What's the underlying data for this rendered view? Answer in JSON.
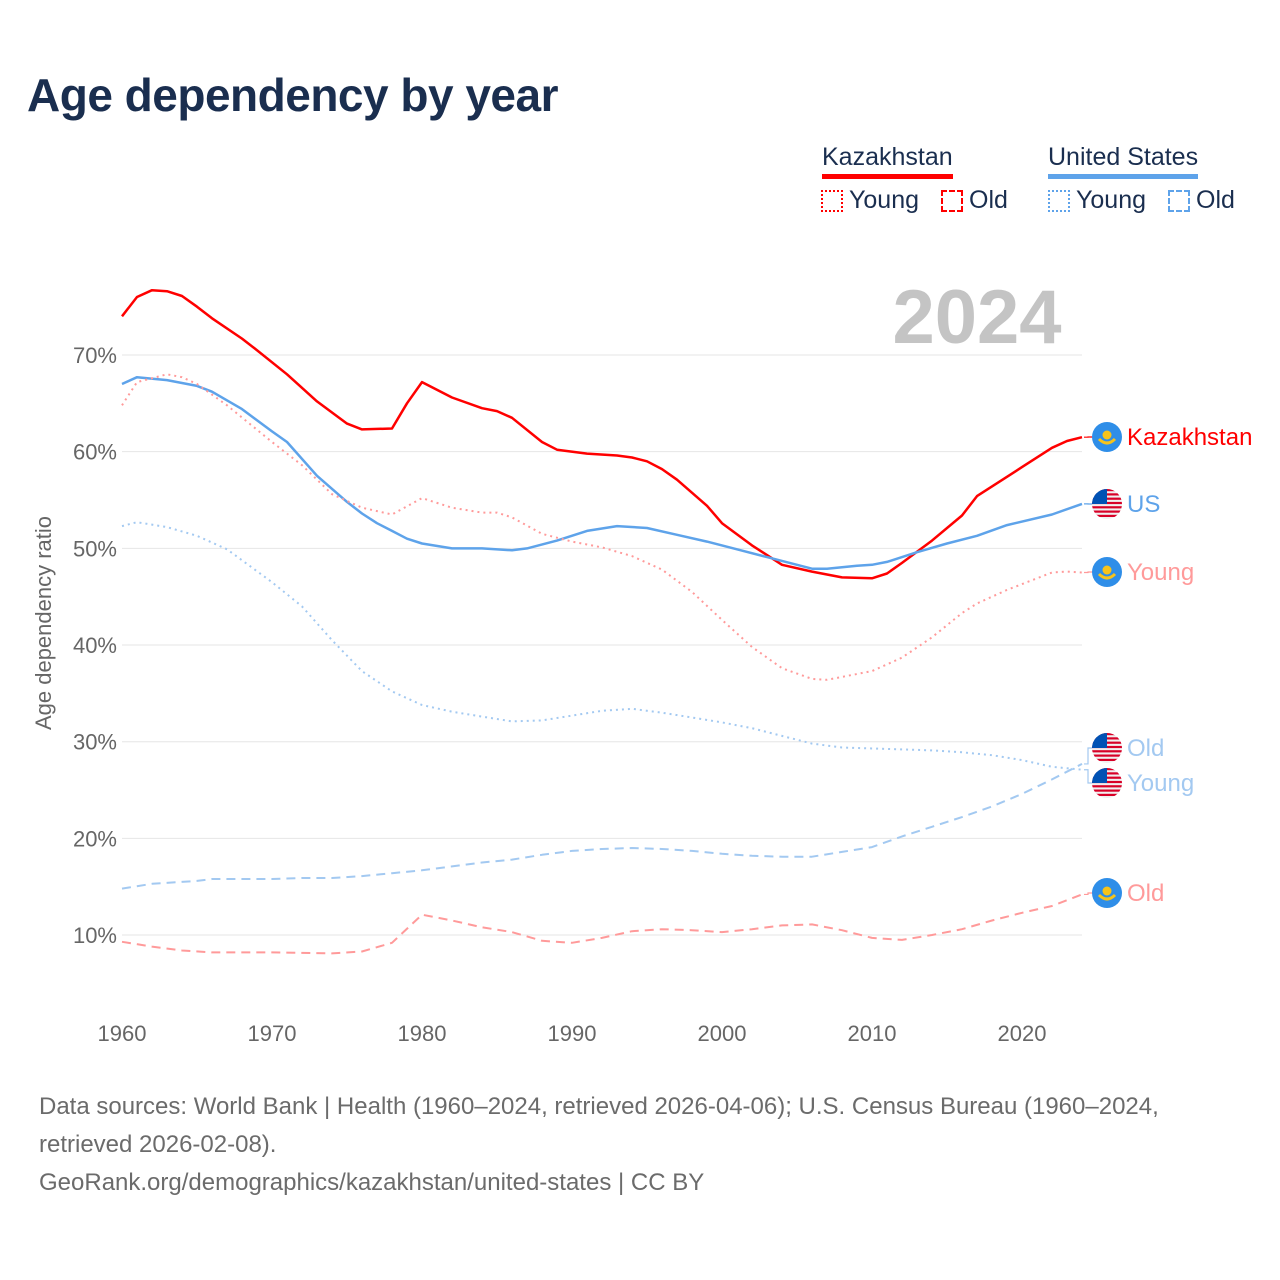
{
  "title": "Age dependency by year",
  "legend": {
    "kazakhstan": {
      "label": "Kazakhstan",
      "color": "#ff0000",
      "young": "Young",
      "old": "Old"
    },
    "us": {
      "label": "United States",
      "color": "#5ea3ea",
      "young": "Young",
      "old": "Old"
    }
  },
  "footer": {
    "sources": "Data sources: World Bank | Health (1960–2024, retrieved 2026-04-06); U.S. Census Bureau (1960–2024, retrieved 2026-02-08).",
    "link": "GeoRank.org/demographics/kazakhstan/united-states | CC BY"
  },
  "chart_data": {
    "type": "line",
    "title": "Age dependency by year",
    "year_watermark": "2024",
    "xlabel": "",
    "ylabel": "Age dependency ratio",
    "xlim": [
      1960,
      2024
    ],
    "ylim": [
      0,
      80
    ],
    "x_ticks": [
      "1960",
      "1970",
      "1980",
      "1990",
      "2000",
      "2010",
      "2020"
    ],
    "y_ticks": [
      "10%",
      "20%",
      "30%",
      "40%",
      "50%",
      "60%",
      "70%"
    ],
    "grid": true,
    "series": [
      {
        "name": "Kazakhstan",
        "end_label": "Kazakhstan",
        "flag": "kazakhstan",
        "color": "#ff0000",
        "style": "solid",
        "points": [
          [
            1960,
            74
          ],
          [
            1961,
            76
          ],
          [
            1962,
            76.7
          ],
          [
            1963,
            76.6
          ],
          [
            1964,
            76.1
          ],
          [
            1965,
            75
          ],
          [
            1966,
            73.8
          ],
          [
            1968,
            71.7
          ],
          [
            1969,
            70.5
          ],
          [
            1971,
            68
          ],
          [
            1973,
            65.2
          ],
          [
            1975,
            62.9
          ],
          [
            1976,
            62.3
          ],
          [
            1978,
            62.4
          ],
          [
            1979,
            65
          ],
          [
            1980,
            67.2
          ],
          [
            1982,
            65.6
          ],
          [
            1984,
            64.5
          ],
          [
            1985,
            64.2
          ],
          [
            1986,
            63.5
          ],
          [
            1988,
            61
          ],
          [
            1989,
            60.2
          ],
          [
            1991,
            59.8
          ],
          [
            1993,
            59.6
          ],
          [
            1994,
            59.4
          ],
          [
            1995,
            59
          ],
          [
            1996,
            58.2
          ],
          [
            1997,
            57.1
          ],
          [
            1999,
            54.4
          ],
          [
            2000,
            52.6
          ],
          [
            2002,
            50.3
          ],
          [
            2003,
            49.3
          ],
          [
            2004,
            48.3
          ],
          [
            2006,
            47.6
          ],
          [
            2007,
            47.3
          ],
          [
            2008,
            47
          ],
          [
            2010,
            46.9
          ],
          [
            2011,
            47.4
          ],
          [
            2012,
            48.5
          ],
          [
            2014,
            50.8
          ],
          [
            2016,
            53.4
          ],
          [
            2017,
            55.4
          ],
          [
            2019,
            57.4
          ],
          [
            2020,
            58.4
          ],
          [
            2022,
            60.4
          ],
          [
            2023,
            61.1
          ],
          [
            2024,
            61.5
          ]
        ]
      },
      {
        "name": "US",
        "end_label": "US",
        "flag": "us",
        "color": "#5ea3ea",
        "style": "solid",
        "points": [
          [
            1960,
            67
          ],
          [
            1961,
            67.7
          ],
          [
            1963,
            67.4
          ],
          [
            1965,
            66.8
          ],
          [
            1966,
            66.2
          ],
          [
            1968,
            64.4
          ],
          [
            1970,
            62.1
          ],
          [
            1971,
            61
          ],
          [
            1973,
            57.5
          ],
          [
            1975,
            54.8
          ],
          [
            1976,
            53.6
          ],
          [
            1977,
            52.6
          ],
          [
            1978,
            51.8
          ],
          [
            1979,
            51
          ],
          [
            1980,
            50.5
          ],
          [
            1982,
            50
          ],
          [
            1984,
            50
          ],
          [
            1986,
            49.8
          ],
          [
            1987,
            50
          ],
          [
            1989,
            50.8
          ],
          [
            1991,
            51.8
          ],
          [
            1993,
            52.3
          ],
          [
            1995,
            52.1
          ],
          [
            1997,
            51.4
          ],
          [
            1999,
            50.7
          ],
          [
            2001,
            49.9
          ],
          [
            2003,
            49.1
          ],
          [
            2005,
            48.3
          ],
          [
            2006,
            47.9
          ],
          [
            2007,
            47.9
          ],
          [
            2009,
            48.2
          ],
          [
            2010,
            48.3
          ],
          [
            2011,
            48.6
          ],
          [
            2013,
            49.6
          ],
          [
            2015,
            50.5
          ],
          [
            2017,
            51.3
          ],
          [
            2019,
            52.4
          ],
          [
            2022,
            53.5
          ],
          [
            2024,
            54.6
          ]
        ]
      },
      {
        "name": "Kazakhstan Young",
        "end_label": "Young",
        "flag": "kazakhstan",
        "color": "#ff9a9a",
        "style": "dotted",
        "points": [
          [
            1960,
            64.8
          ],
          [
            1961,
            67.2
          ],
          [
            1963,
            68
          ],
          [
            1964,
            67.7
          ],
          [
            1965,
            67
          ],
          [
            1967,
            64.8
          ],
          [
            1970,
            61
          ],
          [
            1972,
            58.6
          ],
          [
            1974,
            55.6
          ],
          [
            1976,
            54.2
          ],
          [
            1978,
            53.5
          ],
          [
            1980,
            55.2
          ],
          [
            1982,
            54.2
          ],
          [
            1984,
            53.7
          ],
          [
            1985,
            53.7
          ],
          [
            1986,
            53.2
          ],
          [
            1988,
            51.5
          ],
          [
            1990,
            50.7
          ],
          [
            1992,
            50.1
          ],
          [
            1994,
            49.2
          ],
          [
            1996,
            47.8
          ],
          [
            1998,
            45.5
          ],
          [
            2000,
            42.6
          ],
          [
            2002,
            39.8
          ],
          [
            2004,
            37.6
          ],
          [
            2006,
            36.5
          ],
          [
            2007,
            36.4
          ],
          [
            2008,
            36.7
          ],
          [
            2010,
            37.3
          ],
          [
            2012,
            38.7
          ],
          [
            2014,
            40.8
          ],
          [
            2016,
            43.3
          ],
          [
            2017,
            44.3
          ],
          [
            2019,
            45.7
          ],
          [
            2020,
            46.3
          ],
          [
            2022,
            47.5
          ],
          [
            2023,
            47.6
          ],
          [
            2024,
            47.5
          ]
        ]
      },
      {
        "name": "US Old",
        "end_label": "Old",
        "flag": "us",
        "color": "#a3c9f1",
        "style": "dashed",
        "points": [
          [
            1960,
            14.8
          ],
          [
            1962,
            15.3
          ],
          [
            1965,
            15.6
          ],
          [
            1966,
            15.8
          ],
          [
            1970,
            15.8
          ],
          [
            1972,
            15.9
          ],
          [
            1974,
            15.9
          ],
          [
            1976,
            16.1
          ],
          [
            1978,
            16.4
          ],
          [
            1980,
            16.7
          ],
          [
            1982,
            17.1
          ],
          [
            1984,
            17.5
          ],
          [
            1986,
            17.8
          ],
          [
            1988,
            18.3
          ],
          [
            1990,
            18.7
          ],
          [
            1992,
            18.9
          ],
          [
            1994,
            19
          ],
          [
            1996,
            18.9
          ],
          [
            1998,
            18.7
          ],
          [
            2000,
            18.4
          ],
          [
            2002,
            18.2
          ],
          [
            2004,
            18.1
          ],
          [
            2006,
            18.1
          ],
          [
            2008,
            18.6
          ],
          [
            2010,
            19.1
          ],
          [
            2012,
            20.2
          ],
          [
            2014,
            21.2
          ],
          [
            2016,
            22.2
          ],
          [
            2018,
            23.3
          ],
          [
            2020,
            24.6
          ],
          [
            2022,
            26.1
          ],
          [
            2024,
            27.7
          ]
        ]
      },
      {
        "name": "US Young",
        "end_label": "Young",
        "flag": "us",
        "color": "#a3c9f1",
        "style": "dotted",
        "points": [
          [
            1960,
            52.3
          ],
          [
            1961,
            52.7
          ],
          [
            1963,
            52.2
          ],
          [
            1965,
            51.3
          ],
          [
            1967,
            49.9
          ],
          [
            1970,
            46.5
          ],
          [
            1972,
            44
          ],
          [
            1974,
            40.5
          ],
          [
            1976,
            37.3
          ],
          [
            1978,
            35.2
          ],
          [
            1980,
            33.8
          ],
          [
            1982,
            33.1
          ],
          [
            1984,
            32.6
          ],
          [
            1986,
            32.1
          ],
          [
            1988,
            32.2
          ],
          [
            1990,
            32.7
          ],
          [
            1992,
            33.2
          ],
          [
            1994,
            33.4
          ],
          [
            1996,
            33
          ],
          [
            1998,
            32.5
          ],
          [
            2000,
            32
          ],
          [
            2002,
            31.4
          ],
          [
            2004,
            30.6
          ],
          [
            2006,
            29.8
          ],
          [
            2008,
            29.4
          ],
          [
            2010,
            29.3
          ],
          [
            2012,
            29.2
          ],
          [
            2014,
            29.1
          ],
          [
            2016,
            28.9
          ],
          [
            2018,
            28.6
          ],
          [
            2020,
            28.1
          ],
          [
            2022,
            27.4
          ],
          [
            2024,
            27.1
          ]
        ]
      },
      {
        "name": "Kazakhstan Old",
        "end_label": "Old",
        "flag": "kazakhstan",
        "color": "#ff9a9a",
        "style": "dashed",
        "points": [
          [
            1960,
            9.3
          ],
          [
            1962,
            8.8
          ],
          [
            1964,
            8.4
          ],
          [
            1966,
            8.2
          ],
          [
            1970,
            8.2
          ],
          [
            1974,
            8.1
          ],
          [
            1976,
            8.3
          ],
          [
            1978,
            9.2
          ],
          [
            1980,
            12.1
          ],
          [
            1982,
            11.5
          ],
          [
            1984,
            10.8
          ],
          [
            1986,
            10.3
          ],
          [
            1988,
            9.4
          ],
          [
            1990,
            9.2
          ],
          [
            1992,
            9.7
          ],
          [
            1994,
            10.4
          ],
          [
            1996,
            10.6
          ],
          [
            1998,
            10.5
          ],
          [
            2000,
            10.3
          ],
          [
            2002,
            10.6
          ],
          [
            2004,
            11
          ],
          [
            2006,
            11.1
          ],
          [
            2008,
            10.5
          ],
          [
            2010,
            9.7
          ],
          [
            2012,
            9.5
          ],
          [
            2014,
            10
          ],
          [
            2016,
            10.6
          ],
          [
            2018,
            11.5
          ],
          [
            2020,
            12.3
          ],
          [
            2022,
            13
          ],
          [
            2024,
            14.2
          ]
        ]
      }
    ]
  }
}
